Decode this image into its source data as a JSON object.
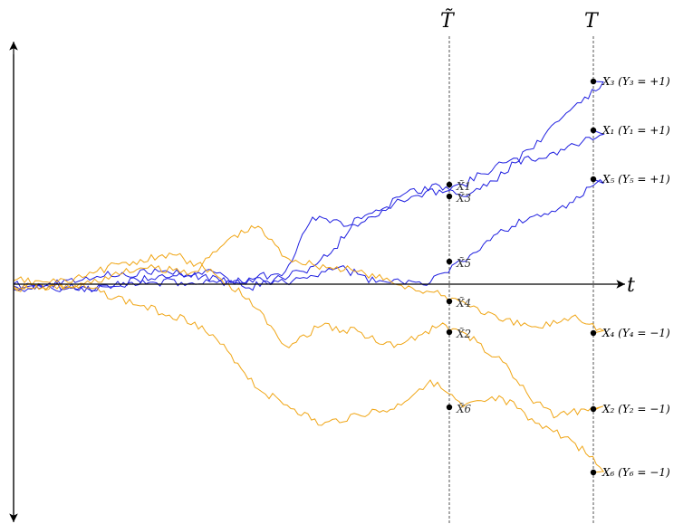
{
  "axes": {
    "t_label": "t",
    "t_tilde_label": "T̃",
    "T_label": "T"
  },
  "colors": {
    "positive": "#1f1fe0",
    "negative": "#f0a514",
    "axis": "#000000",
    "guide": "#555555"
  },
  "trajectories": [
    {
      "id": "1",
      "class": "positive",
      "tilde_label": "X̃1",
      "end_label": "X₁ (Y₁ = +1)"
    },
    {
      "id": "3",
      "class": "positive",
      "tilde_label": "X̃3",
      "end_label": "X₃ (Y₃ = +1)"
    },
    {
      "id": "5",
      "class": "positive",
      "tilde_label": "X̃5",
      "end_label": "X₅ (Y₅ = +1)"
    },
    {
      "id": "4",
      "class": "negative",
      "tilde_label": "X̃4",
      "end_label": "X₄ (Y₄ = −1)"
    },
    {
      "id": "2",
      "class": "negative",
      "tilde_label": "X̃2",
      "end_label": "X₂ (Y₂ = −1)"
    },
    {
      "id": "6",
      "class": "negative",
      "tilde_label": "X̃6",
      "end_label": "X₆ (Y₆ = −1)"
    }
  ]
}
